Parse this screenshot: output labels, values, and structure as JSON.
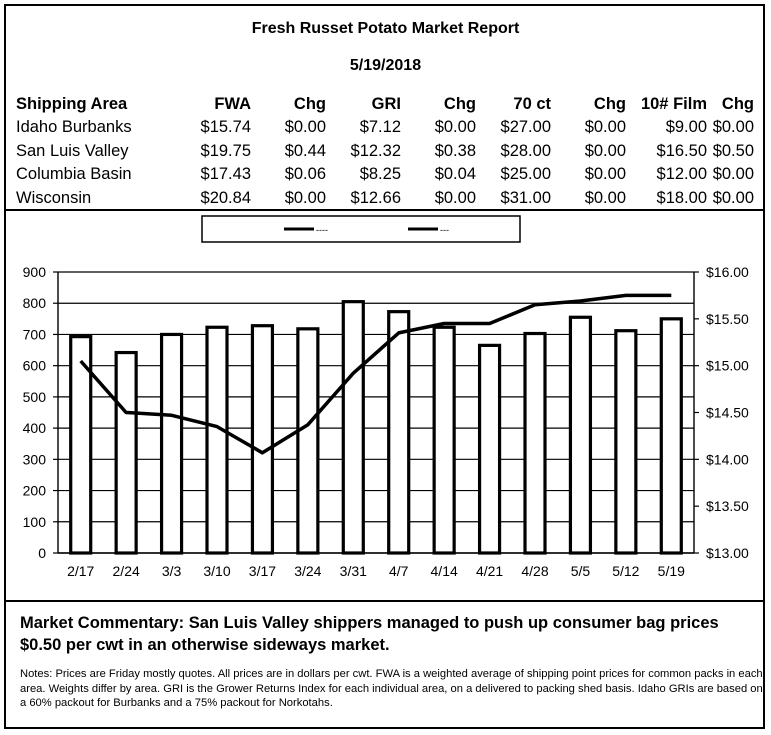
{
  "report": {
    "title": "Fresh Russet Potato Market Report",
    "date": "5/19/2018"
  },
  "price_table": {
    "headers": [
      "Shipping Area",
      "FWA",
      "Chg",
      "GRI",
      "Chg",
      "70 ct",
      "Chg",
      "10# Film",
      "Chg"
    ],
    "rows": [
      [
        "Idaho Burbanks",
        "$15.74",
        "$0.00",
        "$7.12",
        "$0.00",
        "$27.00",
        "$0.00",
        "$9.00",
        "$0.00"
      ],
      [
        "San Luis Valley",
        "$19.75",
        "$0.44",
        "$12.32",
        "$0.38",
        "$28.00",
        "$0.00",
        "$16.50",
        "$0.50"
      ],
      [
        "Columbia Basin",
        "$17.43",
        "$0.06",
        "$8.25",
        "$0.04",
        "$25.00",
        "$0.00",
        "$12.00",
        "$0.00"
      ],
      [
        "Wisconsin",
        "$20.84",
        "$0.00",
        "$12.66",
        "$0.00",
        "$31.00",
        "$0.00",
        "$18.00",
        "$0.00"
      ]
    ]
  },
  "chart_data": {
    "type": "bar",
    "categories": [
      "2/17",
      "2/24",
      "3/3",
      "3/10",
      "3/17",
      "3/24",
      "3/31",
      "4/7",
      "4/14",
      "4/21",
      "4/28",
      "5/5",
      "5/12",
      "5/19"
    ],
    "series": [
      {
        "type": "bar",
        "axis": "left",
        "values": [
          693,
          642,
          700,
          723,
          728,
          718,
          805,
          773,
          723,
          665,
          703,
          755,
          712,
          750
        ]
      },
      {
        "type": "line",
        "axis": "right",
        "values": [
          15.05,
          14.5,
          14.47,
          14.35,
          14.07,
          14.37,
          14.92,
          15.35,
          15.45,
          15.45,
          15.65,
          15.69,
          15.75,
          15.75
        ]
      }
    ],
    "yleft": {
      "ylim": [
        0,
        900
      ],
      "ticks": [
        "0",
        "100",
        "200",
        "300",
        "400",
        "500",
        "600",
        "700",
        "800",
        "900"
      ]
    },
    "yright": {
      "ylim": [
        13.0,
        16.0
      ],
      "ticks": [
        "$13.00",
        "$13.50",
        "$14.00",
        "$14.50",
        "$15.00",
        "$15.50",
        "$16.00"
      ]
    },
    "legend": {
      "placement": "top-center",
      "entries": [
        "----",
        "---"
      ]
    },
    "colors": {
      "bar_fill": "#ffffff",
      "bar_stroke": "#000000",
      "line": "#000000"
    }
  },
  "commentary": {
    "text": "Market Commentary: San Luis Valley shippers managed to push up consumer bag prices $0.50 per cwt in an otherwise sideways market."
  },
  "notes": {
    "text": "Notes: Prices are Friday mostly quotes. All prices are in dollars per cwt. FWA is a weighted average of shipping point prices for  common packs in each area. Weights differ by area. GRI is the Grower Returns Index for each individual area, on a delivered to packing shed basis. Idaho GRIs are based on a 60% packout for Burbanks and a 75% packout for Norkotahs."
  }
}
